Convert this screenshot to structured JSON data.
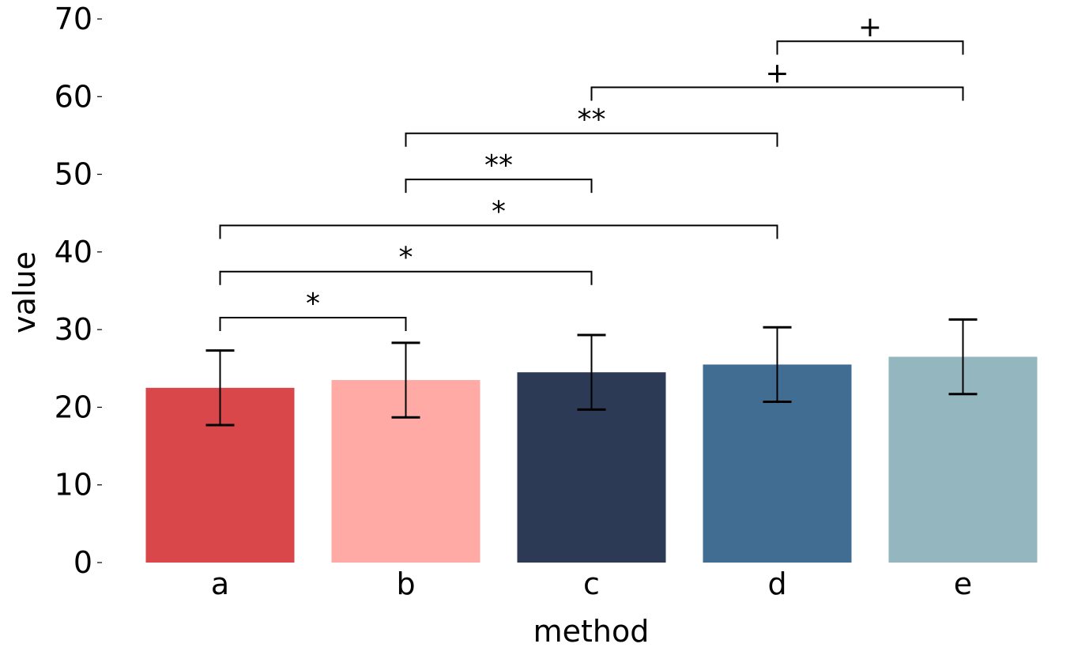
{
  "chart_data": {
    "type": "bar",
    "title": "",
    "xlabel": "method",
    "ylabel": "value",
    "ylim": [
      0,
      70
    ],
    "yticks": [
      0,
      10,
      20,
      30,
      40,
      50,
      60,
      70
    ],
    "grid": false,
    "categories": [
      "a",
      "b",
      "c",
      "d",
      "e"
    ],
    "values": [
      22.5,
      23.5,
      24.5,
      25.5,
      26.5
    ],
    "errors": [
      4.8,
      4.8,
      4.8,
      4.8,
      4.8
    ],
    "colors": [
      "#d9474b",
      "#ffaaa5",
      "#2c3a55",
      "#416d93",
      "#93b6bf"
    ],
    "significance": [
      {
        "from": "a",
        "to": "b",
        "label": "*"
      },
      {
        "from": "a",
        "to": "c",
        "label": "*"
      },
      {
        "from": "a",
        "to": "d",
        "label": "*"
      },
      {
        "from": "b",
        "to": "c",
        "label": "**"
      },
      {
        "from": "b",
        "to": "d",
        "label": "**"
      },
      {
        "from": "c",
        "to": "e",
        "label": "+"
      },
      {
        "from": "d",
        "to": "e",
        "label": "+"
      }
    ]
  }
}
